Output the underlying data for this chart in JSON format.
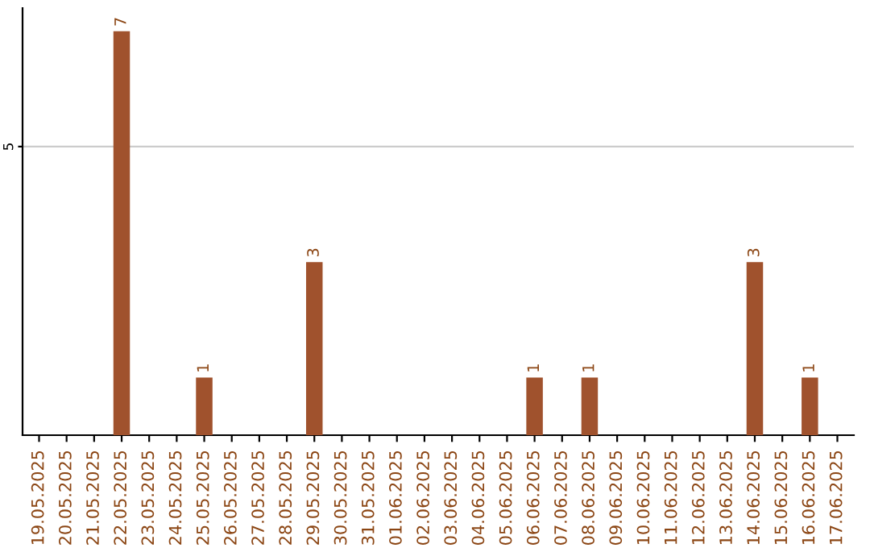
{
  "chart_data": {
    "type": "bar",
    "categories": [
      "19.05.2025",
      "20.05.2025",
      "21.05.2025",
      "22.05.2025",
      "23.05.2025",
      "24.05.2025",
      "25.05.2025",
      "26.05.2025",
      "27.05.2025",
      "28.05.2025",
      "29.05.2025",
      "30.05.2025",
      "31.05.2025",
      "01.06.2025",
      "02.06.2025",
      "03.06.2025",
      "04.06.2025",
      "05.06.2025",
      "06.06.2025",
      "07.06.2025",
      "08.06.2025",
      "09.06.2025",
      "10.06.2025",
      "11.06.2025",
      "12.06.2025",
      "13.06.2025",
      "14.06.2025",
      "15.06.2025",
      "16.06.2025",
      "17.06.2025"
    ],
    "values": [
      0,
      0,
      0,
      7,
      0,
      0,
      1,
      0,
      0,
      0,
      3,
      0,
      0,
      0,
      0,
      0,
      0,
      0,
      1,
      0,
      1,
      0,
      0,
      0,
      0,
      0,
      3,
      0,
      1,
      0
    ],
    "value_labels": [
      null,
      null,
      null,
      "7",
      null,
      null,
      "1",
      null,
      null,
      null,
      "3",
      null,
      null,
      null,
      null,
      null,
      null,
      null,
      "1",
      null,
      "1",
      null,
      null,
      null,
      null,
      null,
      "3",
      null,
      "1",
      null
    ],
    "color": "#a0522d",
    "ylim": [
      0,
      7.4
    ],
    "yticks": [
      5
    ],
    "grid": "y"
  }
}
